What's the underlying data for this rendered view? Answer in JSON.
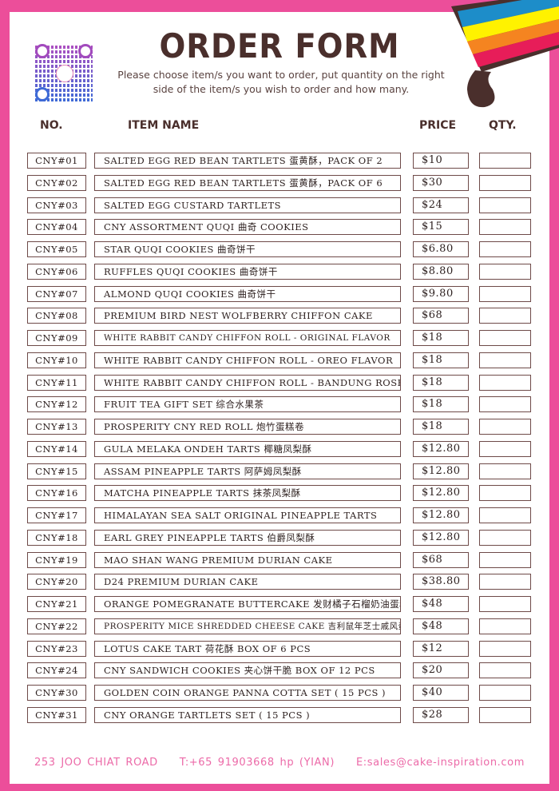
{
  "header": {
    "title": "ORDER FORM",
    "subtitle_line1": "Please choose item/s you want to order, put quantity on the right",
    "subtitle_line2": "side of the item/s you wish to order and how many."
  },
  "columns": {
    "no": "NO.",
    "item": "ITEM NAME",
    "price": "PRICE",
    "qty": "QTY."
  },
  "colors": {
    "border": "#ec4e9a",
    "text": "#4a2f2c",
    "footer": "#ec6aa8"
  },
  "items": [
    {
      "no": "CNY#01",
      "name": "SALTED EGG RED BEAN TARTLETS 蛋黄酥，PACK OF 2",
      "price": "$10",
      "qty": ""
    },
    {
      "no": "CNY#02",
      "name": "SALTED EGG RED BEAN TARTLETS 蛋黄酥，PACK OF 6",
      "price": "$30",
      "qty": ""
    },
    {
      "no": "CNY#03",
      "name": "SALTED EGG CUSTARD TARTLETS",
      "price": "$24",
      "qty": ""
    },
    {
      "no": "CNY#04",
      "name": "CNY ASSORTMENT QUQI 曲奇 COOKIES",
      "price": "$15",
      "qty": ""
    },
    {
      "no": "CNY#05",
      "name": "STAR QUQI COOKIES 曲奇饼干",
      "price": "$6.80",
      "qty": ""
    },
    {
      "no": "CNY#06",
      "name": "RUFFLES QUQI COOKIES 曲奇饼干",
      "price": "$8.80",
      "qty": ""
    },
    {
      "no": "CNY#07",
      "name": "ALMOND QUQI COOKIES 曲奇饼干",
      "price": "$9.80",
      "qty": ""
    },
    {
      "no": "CNY#08",
      "name": "PREMIUM BIRD NEST WOLFBERRY CHIFFON CAKE",
      "price": "$68",
      "qty": ""
    },
    {
      "no": "CNY#09",
      "name": "WHITE RABBIT CANDY CHIFFON ROLL - ORIGINAL FLAVOR",
      "price": "$18",
      "qty": ""
    },
    {
      "no": "CNY#10",
      "name": "WHITE RABBIT CANDY CHIFFON ROLL - OREO FLAVOR",
      "price": "$18",
      "qty": ""
    },
    {
      "no": "CNY#11",
      "name": "WHITE RABBIT CANDY CHIFFON ROLL - BANDUNG ROSE",
      "price": "$18",
      "qty": ""
    },
    {
      "no": "CNY#12",
      "name": "FRUIT TEA GIFT SET 综合水果茶",
      "price": "$18",
      "qty": ""
    },
    {
      "no": "CNY#13",
      "name": "PROSPERITY CNY RED ROLL 炮竹蛋糕卷",
      "price": "$18",
      "qty": ""
    },
    {
      "no": "CNY#14",
      "name": "GULA MELAKA ONDEH TARTS 椰糖凤梨酥",
      "price": "$12.80",
      "qty": ""
    },
    {
      "no": "CNY#15",
      "name": "ASSAM PINEAPPLE TARTS 阿萨姆凤梨酥",
      "price": "$12.80",
      "qty": ""
    },
    {
      "no": "CNY#16",
      "name": "MATCHA PINEAPPLE TARTS 抹茶凤梨酥",
      "price": "$12.80",
      "qty": ""
    },
    {
      "no": "CNY#17",
      "name": "HIMALAYAN SEA SALT ORIGINAL PINEAPPLE TARTS",
      "price": "$12.80",
      "qty": ""
    },
    {
      "no": "CNY#18",
      "name": "EARL GREY PINEAPPLE TARTS 伯爵凤梨酥",
      "price": "$12.80",
      "qty": ""
    },
    {
      "no": "CNY#19",
      "name": "MAO SHAN WANG PREMIUM DURIAN CAKE",
      "price": "$68",
      "qty": ""
    },
    {
      "no": "CNY#20",
      "name": "D24 PREMIUM DURIAN CAKE",
      "price": "$38.80",
      "qty": ""
    },
    {
      "no": "CNY#21",
      "name": "ORANGE POMEGRANATE BUTTERCAKE 发财橘子石榴奶油蛋糕",
      "price": "$48",
      "qty": ""
    },
    {
      "no": "CNY#22",
      "name": "PROSPERITY MICE SHREDDED CHEESE CAKE 吉利鼠年芝士戚风蛋糕",
      "price": "$48",
      "qty": ""
    },
    {
      "no": "CNY#23",
      "name": "LOTUS CAKE TART 荷花酥 BOX OF 6 PCS",
      "price": "$12",
      "qty": ""
    },
    {
      "no": "CNY#24",
      "name": "CNY SANDWICH COOKIES 夹心饼干脆 BOX OF 12 PCS",
      "price": "$20",
      "qty": ""
    },
    {
      "no": "CNY#30",
      "name": "GOLDEN COIN ORANGE PANNA COTTA SET ( 15 PCS )",
      "price": "$40",
      "qty": ""
    },
    {
      "no": "CNY#31",
      "name": "CNY ORANGE TARTLETS SET ( 15 PCS )",
      "price": "$28",
      "qty": ""
    }
  ],
  "footer": {
    "address": "253 JOO CHIAT ROAD",
    "phone": "T:+65 91903668 hp (YIAN)",
    "email": "E:sales@cake-inspiration.com"
  }
}
